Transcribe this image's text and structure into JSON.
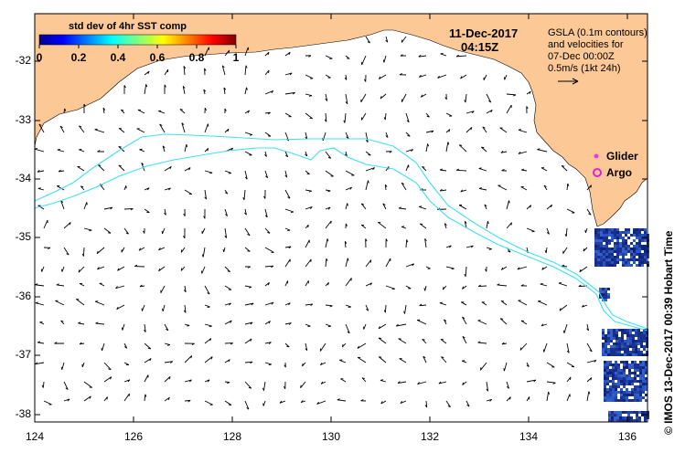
{
  "date": "11-Dec-2017",
  "time": "04:15Z",
  "legend": {
    "lines": [
      "GSLA (0.1m contours)",
      "and velocities for",
      "07-Dec 00:00Z",
      "0.5m/s (1kt 24h)"
    ]
  },
  "colorbar": {
    "title": "std dev of 4hr SST comp",
    "ticks": [
      "0",
      "0.2",
      "0.4",
      "0.6",
      "0.8",
      "1"
    ]
  },
  "key": {
    "glider_label": "Glider",
    "argo_label": "Argo",
    "glider_color": "#e040e0",
    "argo_color": "#e020e0"
  },
  "credit": "© IMOS 13-Dec-2017 00:39 Hobart Time",
  "axes": {
    "lon_ticks": [
      "124",
      "126",
      "128",
      "130",
      "132",
      "134",
      "136"
    ],
    "lat_ticks": [
      "-32",
      "-33",
      "-34",
      "-35",
      "-36",
      "-37",
      "-38"
    ]
  },
  "colors": {
    "land": "#fcc896",
    "contour": "#40e0f0",
    "sst_patch": "#1a3a9a"
  }
}
